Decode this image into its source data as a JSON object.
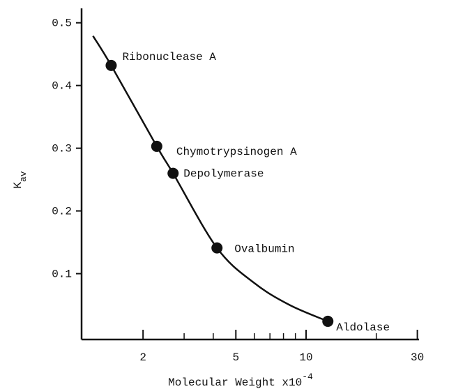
{
  "chart_data": {
    "type": "scatter",
    "ylabel": {
      "main": "K",
      "sub": "av"
    },
    "xlabel": {
      "main": "Molecular Weight x10",
      "sup": "-4"
    },
    "log_x": true,
    "xlim": [
      1.09,
      30.5
    ],
    "ylim": [
      -0.005,
      0.523
    ],
    "xticks": [
      2,
      5,
      10,
      30
    ],
    "xminor": [
      3,
      4,
      6,
      7,
      8,
      9,
      20
    ],
    "yticks": [
      0.1,
      0.2,
      0.3,
      0.4,
      0.5
    ],
    "color": "#111111",
    "points": {
      "labels": [
        "Ribonuclease A",
        "Chymotrypsinogen A",
        "Depolymerase",
        "Ovalbumin",
        "Aldolase"
      ],
      "x": [
        1.46,
        2.29,
        2.69,
        4.15,
        12.4
      ],
      "values": [
        0.432,
        0.303,
        0.26,
        0.141,
        0.024
      ]
    },
    "curve": {
      "x": [
        1.22,
        1.46,
        2.29,
        2.69,
        4.15,
        6,
        8.5,
        12.4
      ],
      "values": [
        0.479,
        0.432,
        0.303,
        0.26,
        0.141,
        0.085,
        0.05,
        0.024
      ]
    }
  }
}
